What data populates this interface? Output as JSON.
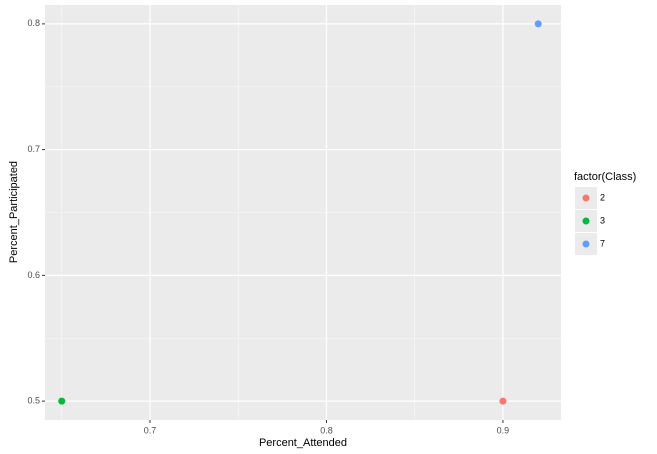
{
  "chart_data": {
    "type": "scatter",
    "x_label": "Percent_Attended",
    "y_label": "Percent_Participated",
    "legend_title": "factor(Class)",
    "legend_position": "right",
    "grid": true,
    "xlim": [
      0.6405,
      0.9329
    ],
    "xticks": [
      0.7,
      0.8,
      0.9
    ],
    "ylim": [
      0.485,
      0.815
    ],
    "yticks": [
      0.5,
      0.6,
      0.7,
      0.8
    ],
    "series": [
      {
        "name": "2",
        "color": "#F8766D",
        "x": [
          0.9
        ],
        "values": [
          0.5
        ]
      },
      {
        "name": "3",
        "color": "#00BA38",
        "x": [
          0.65
        ],
        "values": [
          0.5
        ]
      },
      {
        "name": "7",
        "color": "#619CFF",
        "x": [
          0.92
        ],
        "values": [
          0.8
        ]
      }
    ]
  }
}
